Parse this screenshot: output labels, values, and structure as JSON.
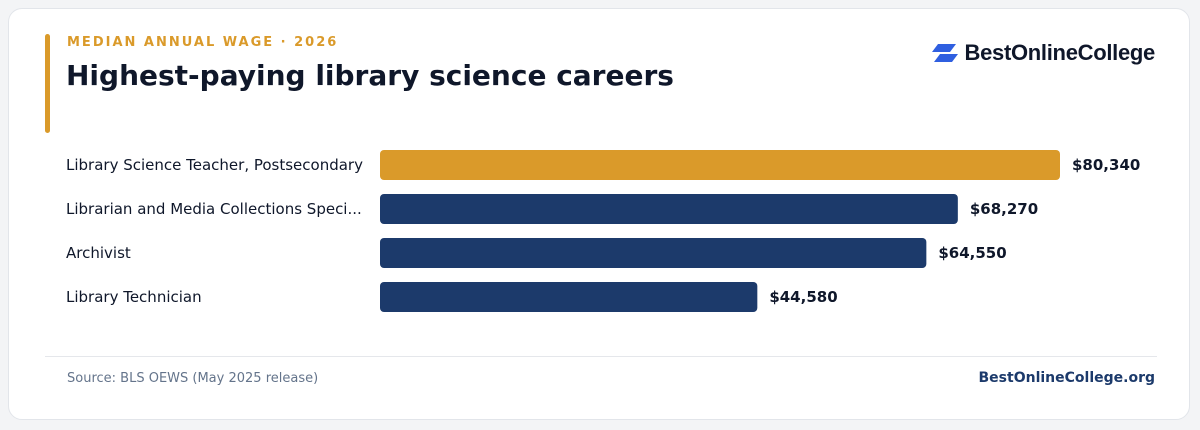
{
  "header": {
    "eyebrow": "MEDIAN ANNUAL WAGE · 2026",
    "title": "Highest-paying library science careers"
  },
  "brand": {
    "name": "BestOnlineCollege",
    "site": "BestOnlineCollege.org",
    "logo_icon": "double-parallelogram-icon",
    "logo_color": "#2f5fe0"
  },
  "footer": {
    "source": "Source: BLS OEWS (May 2025 release)"
  },
  "colors": {
    "highlight": "#da9a2a",
    "bar": "#1c3a6b",
    "text": "#0f172a"
  },
  "chart_data": {
    "type": "bar",
    "orientation": "horizontal",
    "categories": [
      "Library Science Teacher, Postsecondary",
      "Librarian and Media Collections Speci...",
      "Archivist",
      "Library Technician"
    ],
    "values": [
      80340,
      68270,
      64550,
      44580
    ],
    "value_labels": [
      "$80,340",
      "$68,270",
      "$64,550",
      "$44,580"
    ],
    "highlight_index": 0,
    "xlim": [
      0,
      80340
    ],
    "grid": false,
    "legend": "none"
  }
}
